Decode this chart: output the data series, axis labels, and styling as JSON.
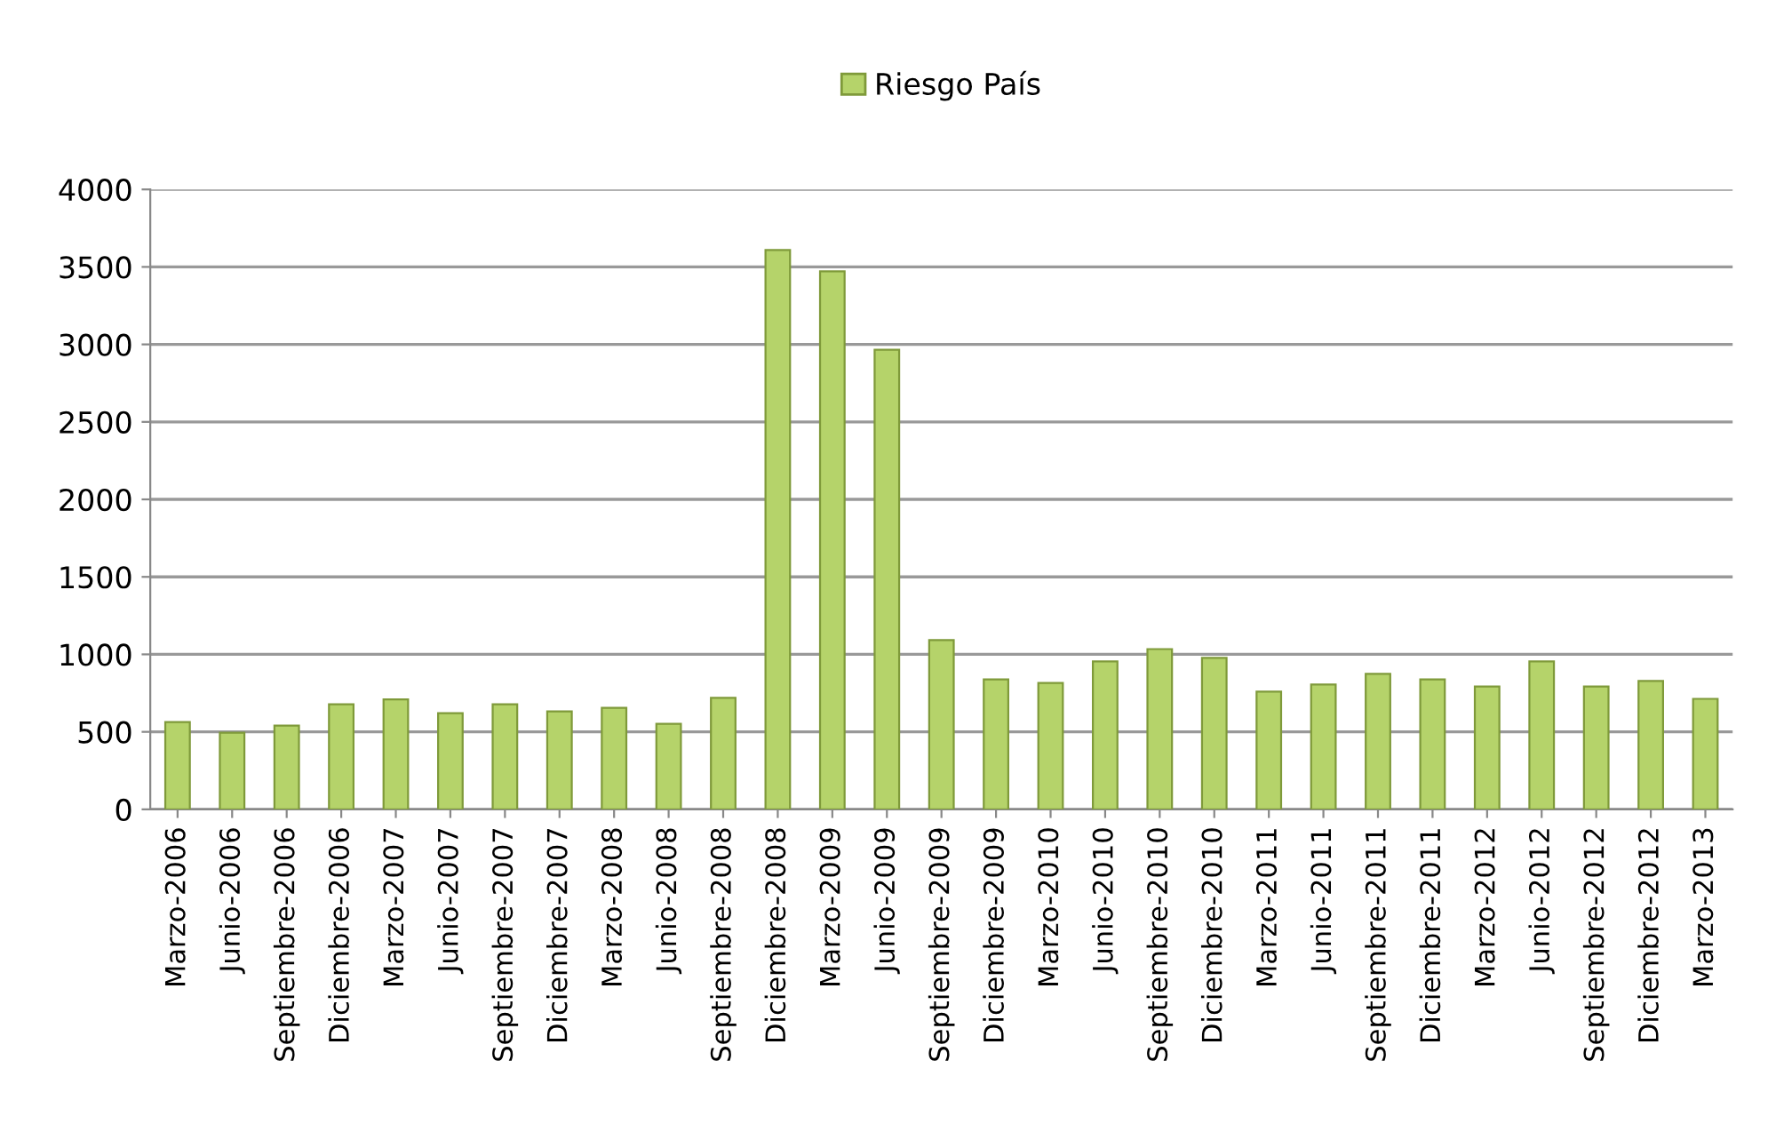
{
  "chart_data": {
    "type": "bar",
    "categories": [
      "Marzo-2006",
      "Junio-2006",
      "Septiembre-2006",
      "Diciembre-2006",
      "Marzo-2007",
      "Junio-2007",
      "Septiembre-2007",
      "Diciembre-2007",
      "Marzo-2008",
      "Junio-2008",
      "Septiembre-2008",
      "Diciembre-2008",
      "Marzo-2009",
      "Junio-2009",
      "Septiembre-2009",
      "Diciembre-2009",
      "Marzo-2010",
      "Junio-2010",
      "Septiembre-2010",
      "Diciembre-2010",
      "Marzo-2011",
      "Junio-2011",
      "Septiembre-2011",
      "Diciembre-2011",
      "Marzo-2012",
      "Junio-2012",
      "Septiembre-2012",
      "Diciembre-2012",
      "Marzo-2013"
    ],
    "series": [
      {
        "name": "Riesgo País",
        "color": "#b5d36a",
        "values": [
          563,
          494,
          540,
          678,
          709,
          621,
          678,
          632,
          655,
          552,
          720,
          3609,
          3471,
          2966,
          1092,
          839,
          816,
          954,
          1034,
          977,
          759,
          805,
          874,
          839,
          793,
          954,
          793,
          828,
          713
        ]
      }
    ],
    "ylim": [
      0,
      4000
    ],
    "yticks": [
      0,
      500,
      1000,
      1500,
      2000,
      2500,
      3000,
      3500,
      4000
    ],
    "grid": "y",
    "legend": "top"
  }
}
